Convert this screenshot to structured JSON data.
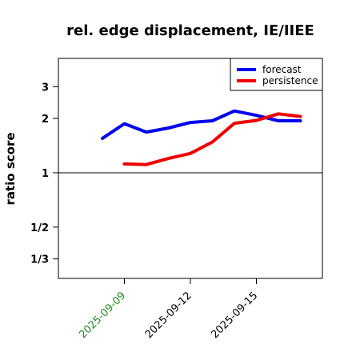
{
  "chart_data": {
    "type": "line",
    "title": "rel. edge displacement, IE/IIEE",
    "ylabel": "ratio score",
    "xlabel": "",
    "y_scale": "log",
    "ylim": [
      0.26,
      4.3
    ],
    "reference_line": 1,
    "ytick_labels": [
      "3",
      "2",
      "1",
      "1/2",
      "1/3"
    ],
    "ytick_values": [
      3,
      2,
      1,
      0.5,
      0.3333
    ],
    "xtick_labels": [
      "2025-09-09",
      "2025-09-12",
      "2025-09-15"
    ],
    "xtick_colors": [
      "#228B22",
      "#000000",
      "#000000"
    ],
    "xlim": [
      "2025-09-06",
      "2025-09-18"
    ],
    "legend_position": "top-right",
    "series": [
      {
        "name": "forecast",
        "color": "#0000ee",
        "x": [
          "2025-09-08",
          "2025-09-09",
          "2025-09-10",
          "2025-09-11",
          "2025-09-12",
          "2025-09-13",
          "2025-09-14",
          "2025-09-15",
          "2025-09-16",
          "2025-09-17"
        ],
        "values": [
          1.55,
          1.87,
          1.68,
          1.77,
          1.9,
          1.94,
          2.2,
          2.08,
          1.94,
          1.94
        ]
      },
      {
        "name": "persistence",
        "color": "#ee0000",
        "x": [
          "2025-09-09",
          "2025-09-10",
          "2025-09-11",
          "2025-09-12",
          "2025-09-13",
          "2025-09-14",
          "2025-09-15",
          "2025-09-16",
          "2025-09-17"
        ],
        "values": [
          1.12,
          1.11,
          1.2,
          1.28,
          1.48,
          1.88,
          1.95,
          2.12,
          2.05
        ]
      }
    ]
  }
}
